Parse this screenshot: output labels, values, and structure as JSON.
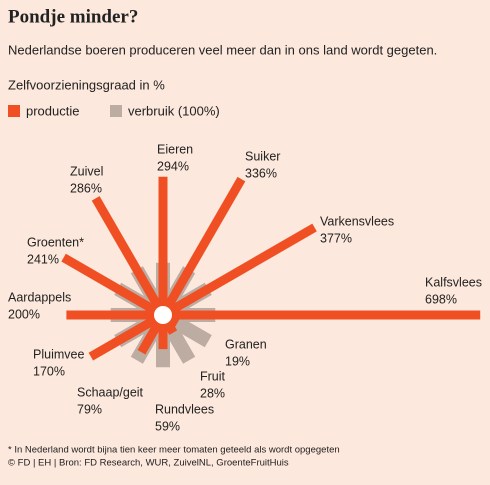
{
  "chart_data": {
    "type": "radial-bar",
    "title": "Pondje minder?",
    "subtitle": "Nederlandse boeren produceren veel meer dan in ons land wordt gegeten.",
    "axis_label": "Zelfvoorzieningsgraad in %",
    "categories": [
      "Kalfsvlees",
      "Varkensvlees",
      "Suiker",
      "Eieren",
      "Zuivel",
      "Groenten*",
      "Aardappels",
      "Pluimvee",
      "Schaap/geit",
      "Rundvlees",
      "Fruit",
      "Granen"
    ],
    "series": [
      {
        "name": "productie",
        "color": "#f04e23",
        "values": [
          698,
          377,
          336,
          294,
          286,
          241,
          200,
          170,
          79,
          59,
          28,
          19
        ],
        "value_labels": [
          "698%",
          "377%",
          "336%",
          "294%",
          "286%",
          "241%",
          "200%",
          "170%",
          "79%",
          "59%",
          "28%",
          "19%"
        ]
      },
      {
        "name": "verbruik (100%)",
        "color": "#bcaca2",
        "values": [
          100,
          100,
          100,
          100,
          100,
          100,
          100,
          100,
          100,
          100,
          100,
          100
        ]
      }
    ],
    "footnotes": [
      "* In Nederland wordt bijna tien keer meer tomaten geteeld als wordt opgegeten",
      "© FD | EH | Bron: FD Research, WUR, ZuivelNL, GroenteFruitHuis"
    ]
  }
}
